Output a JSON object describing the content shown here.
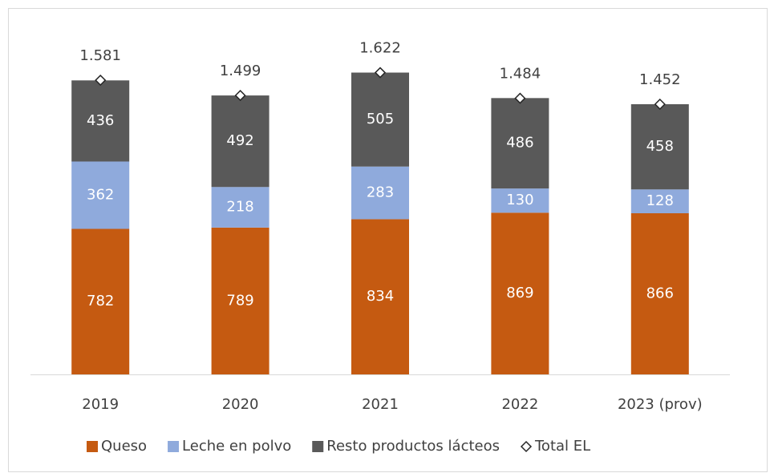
{
  "chart_data": {
    "type": "stacked_bar",
    "categories": [
      "2019",
      "2020",
      "2021",
      "2022",
      "2023 (prov)"
    ],
    "series": [
      {
        "name": "Queso",
        "color": "#c55a11",
        "values": [
          782,
          789,
          834,
          869,
          866
        ]
      },
      {
        "name": "Leche en polvo",
        "color": "#8faadc",
        "values": [
          362,
          218,
          283,
          130,
          128
        ]
      },
      {
        "name": "Resto productos lácteos",
        "color": "#595959",
        "values": [
          436,
          492,
          505,
          486,
          458
        ]
      },
      {
        "name": "Total EL",
        "marker": "diamond",
        "color": "#ffffff",
        "values": [
          1581,
          1499,
          1622,
          1484,
          1452
        ],
        "value_labels": [
          "1.581",
          "1.499",
          "1.622",
          "1.484",
          "1.452"
        ]
      }
    ],
    "legend": "bottom"
  }
}
